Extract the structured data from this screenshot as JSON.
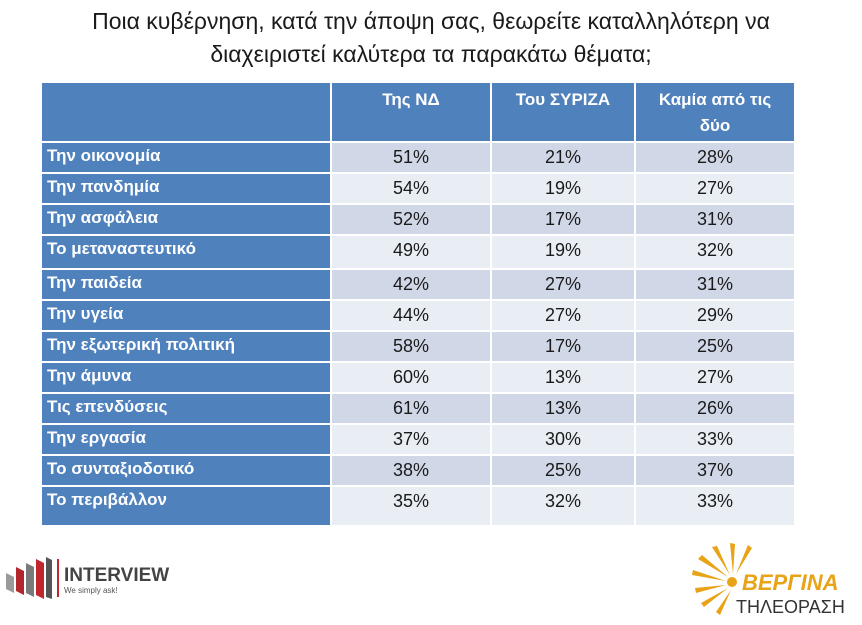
{
  "title_lines": [
    "Ποια κυβέρνηση, κατά την άποψη σας, θεωρείτε καταλληλότερη να",
    "διαχειριστεί καλύτερα τα παρακάτω θέματα;"
  ],
  "chart_data": {
    "type": "table",
    "columns": [
      "",
      "Της ΝΔ",
      "Του ΣΥΡΙΖΑ",
      "Καμία από τις δύο"
    ],
    "rows": [
      {
        "label": "Την οικονομία",
        "values": [
          "51%",
          "21%",
          "28%"
        ]
      },
      {
        "label": "Την πανδημία",
        "values": [
          "54%",
          "19%",
          "27%"
        ]
      },
      {
        "label": "Την ασφάλεια",
        "values": [
          "52%",
          "17%",
          "31%"
        ]
      },
      {
        "label": "Το μεταναστευτικό",
        "values": [
          "49%",
          "19%",
          "32%"
        ]
      },
      {
        "label": "Την παιδεία",
        "values": [
          "42%",
          "27%",
          "31%"
        ]
      },
      {
        "label": "Την υγεία",
        "values": [
          "44%",
          "27%",
          "29%"
        ]
      },
      {
        "label": "Την εξωτερική πολιτική",
        "values": [
          "58%",
          "17%",
          "25%"
        ]
      },
      {
        "label": "Την άμυνα",
        "values": [
          "60%",
          "13%",
          "27%"
        ]
      },
      {
        "label": "Τις επενδύσεις",
        "values": [
          "61%",
          "13%",
          "26%"
        ]
      },
      {
        "label": "Την εργασία",
        "values": [
          "37%",
          "30%",
          "33%"
        ]
      },
      {
        "label": "Το συνταξιοδοτικό",
        "values": [
          "38%",
          "25%",
          "37%"
        ]
      },
      {
        "label": "Το περιβάλλον",
        "values": [
          "35%",
          "32%",
          "33%"
        ]
      }
    ]
  },
  "colors": {
    "header_blue": "#4f81bd",
    "row_odd": "#d0d8e8",
    "row_even": "#e9edf4",
    "brand_red": "#c0262c",
    "brand_gold": "#e8a317"
  },
  "logos": {
    "interview_name": "INTERVIEW",
    "interview_tagline": "We simply ask!",
    "vergina_name": "ΒΕΡΓΙΝΑ",
    "vergina_sub": "ΤΗΛΕΟΡΑΣΗ"
  }
}
